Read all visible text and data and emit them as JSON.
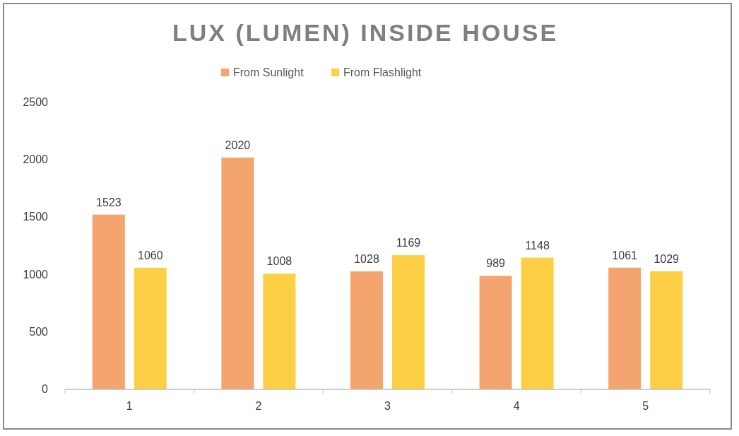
{
  "chart_data": {
    "type": "bar",
    "title": "LUX (LUMEN) INSIDE HOUSE",
    "categories": [
      "1",
      "2",
      "3",
      "4",
      "5"
    ],
    "series": [
      {
        "name": "From Sunlight",
        "color": "#f4a46e",
        "values": [
          1523,
          2020,
          1028,
          989,
          1061
        ]
      },
      {
        "name": "From Flashlight",
        "color": "#fdcf45",
        "values": [
          1060,
          1008,
          1169,
          1148,
          1029
        ]
      }
    ],
    "ylim": [
      0,
      2500
    ],
    "yticks": [
      0,
      500,
      1000,
      1500,
      2000,
      2500
    ],
    "grid": false,
    "legend": "top",
    "data_labels": true
  }
}
